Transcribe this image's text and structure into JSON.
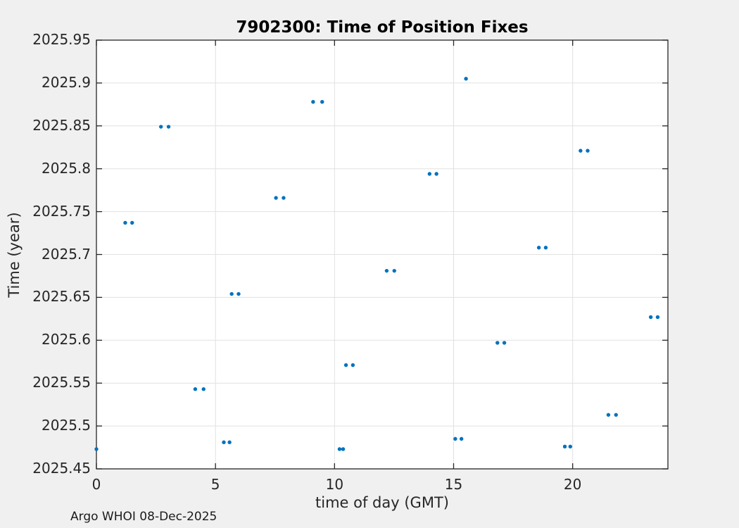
{
  "figure": {
    "title": "7902300: Time of Position Fixes",
    "footer": "Argo WHOI 08-Dec-2025"
  },
  "chart_data": {
    "type": "scatter",
    "title": "7902300: Time of Position Fixes",
    "xlabel": "time of day (GMT)",
    "ylabel": "Time (year)",
    "xlim": [
      0,
      24
    ],
    "ylim": [
      2025.45,
      2025.95
    ],
    "grid": true,
    "legend": "none",
    "marker_color": "#0072BD",
    "background_color": "#f0f0f0",
    "plot_background": "#ffffff",
    "grid_color": "#e1e1e1",
    "axis_color": "#262626",
    "xticks": [
      [
        0,
        "0"
      ],
      [
        5,
        "5"
      ],
      [
        10,
        "10"
      ],
      [
        15,
        "15"
      ],
      [
        20,
        "20"
      ]
    ],
    "yticks": [
      [
        2025.45,
        "2025.45"
      ],
      [
        2025.5,
        "2025.5"
      ],
      [
        2025.55,
        "2025.55"
      ],
      [
        2025.6,
        "2025.6"
      ],
      [
        2025.65,
        "2025.65"
      ],
      [
        2025.7,
        "2025.7"
      ],
      [
        2025.75,
        "2025.75"
      ],
      [
        2025.8,
        "2025.8"
      ],
      [
        2025.85,
        "2025.85"
      ],
      [
        2025.9,
        "2025.9"
      ],
      [
        2025.95,
        "2025.95"
      ]
    ],
    "points": [
      [
        0.0,
        2025.473
      ],
      [
        1.21,
        2025.737
      ],
      [
        1.5,
        2025.737
      ],
      [
        2.71,
        2025.849
      ],
      [
        3.03,
        2025.849
      ],
      [
        4.15,
        2025.543
      ],
      [
        4.5,
        2025.543
      ],
      [
        5.35,
        2025.481
      ],
      [
        5.59,
        2025.481
      ],
      [
        5.68,
        2025.654
      ],
      [
        5.97,
        2025.654
      ],
      [
        7.54,
        2025.766
      ],
      [
        7.86,
        2025.766
      ],
      [
        9.1,
        2025.878
      ],
      [
        9.48,
        2025.878
      ],
      [
        10.21,
        2025.473
      ],
      [
        10.36,
        2025.473
      ],
      [
        10.48,
        2025.571
      ],
      [
        10.77,
        2025.571
      ],
      [
        12.19,
        2025.681
      ],
      [
        12.51,
        2025.681
      ],
      [
        13.99,
        2025.794
      ],
      [
        14.28,
        2025.794
      ],
      [
        15.07,
        2025.485
      ],
      [
        15.33,
        2025.485
      ],
      [
        15.52,
        2025.905
      ],
      [
        16.84,
        2025.597
      ],
      [
        17.13,
        2025.597
      ],
      [
        18.58,
        2025.708
      ],
      [
        18.87,
        2025.708
      ],
      [
        19.67,
        2025.476
      ],
      [
        19.9,
        2025.476
      ],
      [
        20.33,
        2025.821
      ],
      [
        20.63,
        2025.821
      ],
      [
        21.5,
        2025.513
      ],
      [
        21.82,
        2025.513
      ],
      [
        23.28,
        2025.627
      ],
      [
        23.57,
        2025.627
      ]
    ]
  }
}
